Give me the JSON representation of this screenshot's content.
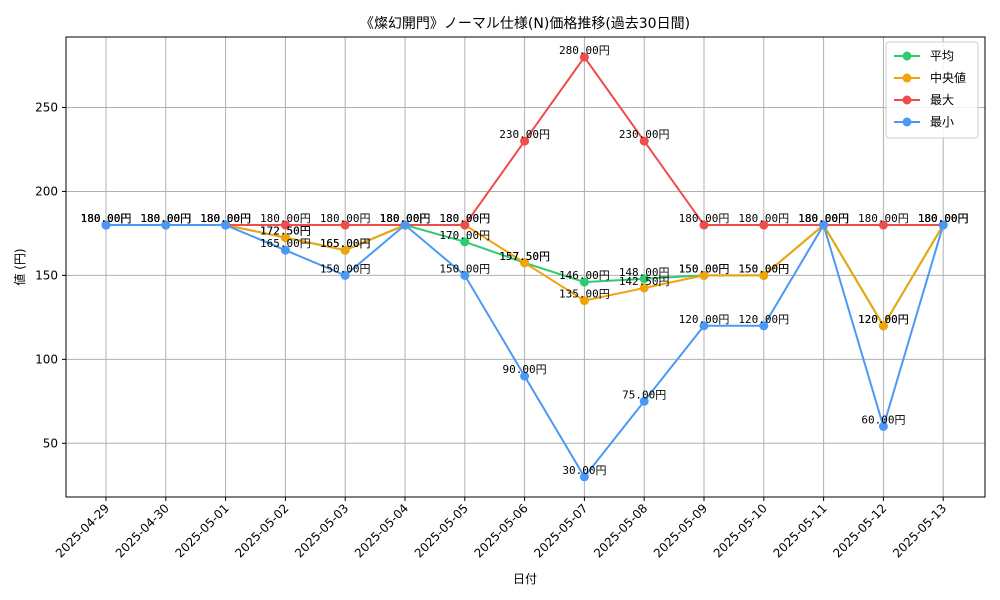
{
  "chart_data": {
    "type": "line",
    "title": "《燦幻開門》ノーマル仕様(N)価格推移(過去30日間)",
    "xlabel": "日付",
    "ylabel": "値 (円)",
    "ylim": [
      18,
      292
    ],
    "yticks": [
      50,
      100,
      150,
      200,
      250
    ],
    "grid": true,
    "legend_position": "top-right",
    "categories": [
      "2025-04-29",
      "2025-04-30",
      "2025-05-01",
      "2025-05-02",
      "2025-05-03",
      "2025-05-04",
      "2025-05-05",
      "2025-05-06",
      "2025-05-07",
      "2025-05-08",
      "2025-05-09",
      "2025-05-10",
      "2025-05-11",
      "2025-05-12",
      "2025-05-13"
    ],
    "series": [
      {
        "name": "平均",
        "color": "#2ecc71",
        "values": [
          180,
          180,
          180,
          172.5,
          165,
          180,
          170,
          157.5,
          146,
          148,
          150,
          150,
          180,
          120,
          180
        ],
        "labels": [
          "180.00円",
          "180.00円",
          "180.00円",
          "172.50円",
          "165.00円",
          "180.00円",
          "170.00円",
          "157.50円",
          "146.00円",
          "148.00円",
          "150.00円",
          "150.00円",
          "180.00円",
          "120.00円",
          "180.00円"
        ]
      },
      {
        "name": "中央値",
        "color": "#f0a30a",
        "values": [
          180,
          180,
          180,
          172.5,
          165,
          180,
          180,
          157.5,
          135,
          142.5,
          150,
          150,
          180,
          120,
          180
        ],
        "labels": [
          "180.00円",
          "180.00円",
          "180.00円",
          "172.50円",
          "165.00円",
          "180.00円",
          "180.00円",
          "157.50円",
          "135.00円",
          "142.50円",
          "150.00円",
          "150.00円",
          "180.00円",
          "120.00円",
          "180.00円"
        ]
      },
      {
        "name": "最大",
        "color": "#ef4c4c",
        "values": [
          180,
          180,
          180,
          180,
          180,
          180,
          180,
          230,
          280,
          230,
          180,
          180,
          180,
          180,
          180
        ],
        "labels": [
          "180.00円",
          "180.00円",
          "180.00円",
          "180.00円",
          "180.00円",
          "180.00円",
          "180.00円",
          "230.00円",
          "280.00円",
          "230.00円",
          "180.00円",
          "180.00円",
          "180.00円",
          "180.00円",
          "180.00円"
        ]
      },
      {
        "name": "最小",
        "color": "#4a9af5",
        "values": [
          180,
          180,
          180,
          165,
          150,
          180,
          150,
          90,
          30,
          75,
          120,
          120,
          180,
          60,
          180
        ],
        "labels": [
          "180.00円",
          "180.00円",
          "180.00円",
          "165.00円",
          "150.00円",
          "180.00円",
          "150.00円",
          "90.00円",
          "30.00円",
          "75.00円",
          "120.00円",
          "120.00円",
          "180.00円",
          "60.00円",
          "180.00円"
        ]
      }
    ]
  }
}
